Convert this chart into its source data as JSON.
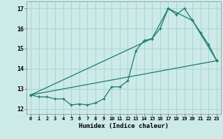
{
  "xlabel": "Humidex (Indice chaleur)",
  "bg_color": "#cceae8",
  "grid_color": "#aad4d2",
  "line_color": "#1a7a6e",
  "xlim": [
    -0.5,
    23.5
  ],
  "ylim": [
    11.75,
    17.35
  ],
  "xticks": [
    0,
    1,
    2,
    3,
    4,
    5,
    6,
    7,
    8,
    9,
    10,
    11,
    12,
    13,
    14,
    15,
    16,
    17,
    18,
    19,
    20,
    21,
    22,
    23
  ],
  "yticks": [
    12,
    13,
    14,
    15,
    16,
    17
  ],
  "line1_x": [
    0,
    1,
    2,
    3,
    4,
    5,
    6,
    7,
    8,
    9,
    10,
    11,
    12,
    13,
    14,
    15,
    16,
    17,
    18,
    19,
    20,
    21,
    22,
    23
  ],
  "line1_y": [
    12.7,
    12.6,
    12.6,
    12.5,
    12.5,
    12.2,
    12.25,
    12.2,
    12.3,
    12.5,
    13.1,
    13.1,
    13.4,
    14.9,
    15.4,
    15.5,
    16.0,
    17.0,
    16.7,
    17.0,
    16.4,
    15.8,
    15.2,
    14.4
  ],
  "line2_x": [
    0,
    23
  ],
  "line2_y": [
    12.7,
    14.4
  ],
  "line3_x": [
    0,
    15,
    17,
    20,
    23
  ],
  "line3_y": [
    12.7,
    15.5,
    17.0,
    16.4,
    14.4
  ]
}
